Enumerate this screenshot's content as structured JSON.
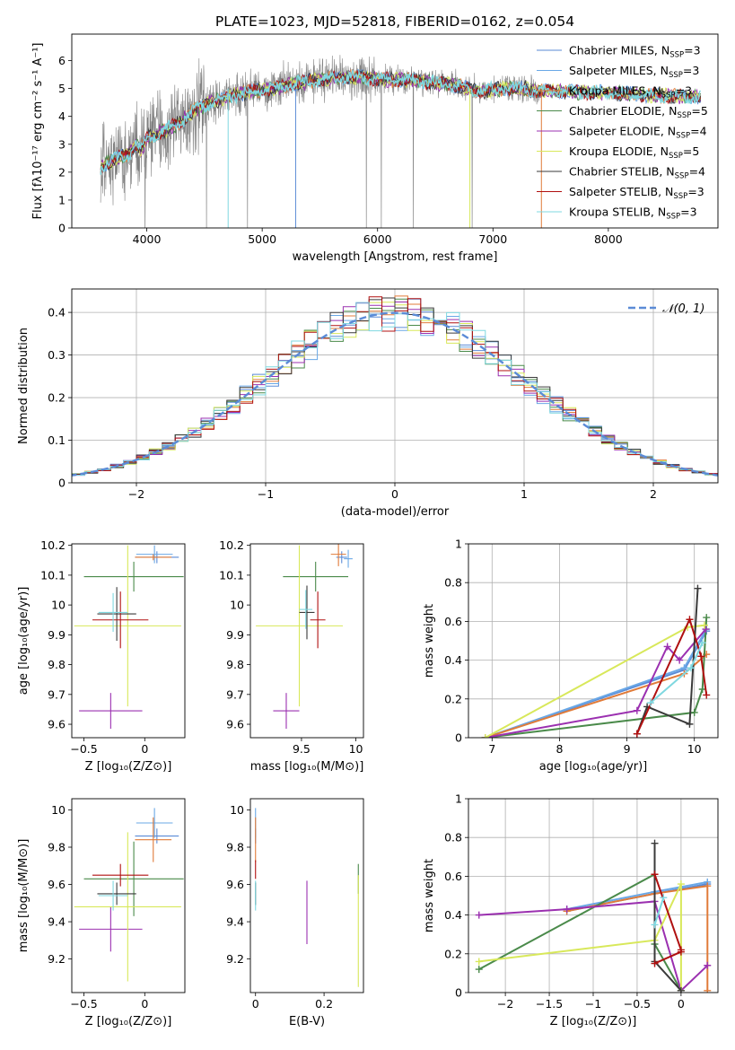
{
  "colors": {
    "observed": "#808080",
    "gaussian": "#5b8bd6",
    "grid": "#b0b0b0",
    "series": [
      "#5b8bd6",
      "#6aa8e6",
      "#e07b39",
      "#4a8a4a",
      "#9b30b0",
      "#d8e85a",
      "#3a3a3a",
      "#b01010",
      "#7fd8e0"
    ]
  },
  "chart_data": [
    {
      "id": "spectrum",
      "type": "line",
      "title": "PLATE=1023, MJD=52818, FIBERID=0162, z=0.054",
      "xlabel": "wavelength [Angstrom, rest frame]",
      "ylabel": "Flux [fλ10⁻¹⁷ erg cm⁻² s⁻¹ A⁻¹]",
      "xlim": [
        3350,
        8950
      ],
      "ylim": [
        0,
        6.95
      ],
      "xticks": [
        4000,
        5000,
        6000,
        7000,
        8000
      ],
      "yticks": [
        0,
        1,
        2,
        3,
        4,
        5,
        6
      ],
      "grid": false,
      "legend_position": "upper-right",
      "observed_range": [
        3600,
        7400
      ],
      "model_anchors": {
        "x": [
          3600,
          3700,
          3800,
          3850,
          3900,
          3950,
          4000,
          4100,
          4200,
          4300,
          4400,
          4500,
          4700,
          4900,
          5100,
          5300,
          5500,
          5700,
          5900,
          6100,
          6300,
          6500,
          6700,
          6900,
          7100,
          7250,
          7400,
          7600,
          7800,
          8000,
          8200,
          8400,
          8800
        ],
        "y": [
          2.2,
          2.4,
          2.6,
          2.7,
          3.0,
          2.8,
          3.2,
          3.4,
          3.6,
          3.8,
          4.2,
          4.4,
          4.7,
          4.9,
          5.0,
          5.2,
          5.3,
          5.4,
          5.4,
          5.3,
          5.3,
          5.2,
          5.1,
          4.9,
          5.0,
          5.0,
          4.9,
          4.9,
          4.85,
          4.85,
          4.8,
          4.75,
          4.7
        ]
      },
      "series": [
        {
          "name": "Chabrier MILES, N_SSP=3",
          "label_main": "Chabrier MILES, N",
          "label_sub": "SSP",
          "label_tail": "=3"
        },
        {
          "name": "Salpeter MILES, N_SSP=3",
          "label_main": "Salpeter MILES, N",
          "label_sub": "SSP",
          "label_tail": "=3"
        },
        {
          "name": "Kroupa MILES, N_SSP=3",
          "label_main": "Kroupa MILES, N",
          "label_sub": "SSP",
          "label_tail": "=3"
        },
        {
          "name": "Chabrier ELODIE, N_SSP=5",
          "label_main": "Chabrier ELODIE, N",
          "label_sub": "SSP",
          "label_tail": "=5"
        },
        {
          "name": "Salpeter ELODIE, N_SSP=4",
          "label_main": "Salpeter ELODIE, N",
          "label_sub": "SSP",
          "label_tail": "=4"
        },
        {
          "name": "Kroupa ELODIE, N_SSP=5",
          "label_main": "Kroupa ELODIE, N",
          "label_sub": "SSP",
          "label_tail": "=5"
        },
        {
          "name": "Chabrier STELIB, N_SSP=4",
          "label_main": "Chabrier STELIB, N",
          "label_sub": "SSP",
          "label_tail": "=4"
        },
        {
          "name": "Salpeter STELIB, N_SSP=3",
          "label_main": "Salpeter STELIB, N",
          "label_sub": "SSP",
          "label_tail": "=3"
        },
        {
          "name": "Kroupa STELIB, N_SSP=3",
          "label_main": "Kroupa STELIB, N",
          "label_sub": "SSP",
          "label_tail": "=3"
        }
      ]
    },
    {
      "id": "residuals",
      "type": "histogram",
      "xlabel": "(data-model)/error",
      "ylabel": "Normed distribution",
      "xlim": [
        -2.5,
        2.5
      ],
      "ylim": [
        0,
        0.455
      ],
      "xticks": [
        -2,
        -1,
        0,
        1,
        2
      ],
      "yticks": [
        0.0,
        0.1,
        0.2,
        0.3,
        0.4
      ],
      "grid": true,
      "legend_position": "upper-right",
      "legend": "𝒩(0, 1)",
      "bin_width": 0.1,
      "gaussian": {
        "mean": 0,
        "sigma": 1
      }
    },
    {
      "id": "age-vs-Z",
      "type": "errorbar",
      "xlabel": "Z [log₁₀(Z/Z⊙)]",
      "ylabel": "age  [log₁₀(age/yr)]",
      "xlim": [
        -0.6,
        0.33
      ],
      "ylim": [
        9.555,
        10.205
      ],
      "xticks": [
        -0.5,
        0.0
      ],
      "yticks": [
        9.6,
        9.7,
        9.8,
        9.9,
        10.0,
        10.1,
        10.2
      ],
      "grid": false,
      "points": [
        {
          "x": 0.1,
          "y": 10.16,
          "xerr": 0.18,
          "yerr": 0.02
        },
        {
          "x": 0.08,
          "y": 10.17,
          "xerr": 0.15,
          "yerr": 0.03
        },
        {
          "x": 0.07,
          "y": 10.16,
          "xerr": 0.15,
          "yerr": 0.01
        },
        {
          "x": -0.09,
          "y": 10.095,
          "xerr": 0.41,
          "yerr": 0.05
        },
        {
          "x": -0.28,
          "y": 9.645,
          "xerr": 0.26,
          "yerr": 0.06
        },
        {
          "x": -0.14,
          "y": 9.93,
          "xerr": 0.44,
          "yerr": 0.27
        },
        {
          "x": -0.23,
          "y": 9.97,
          "xerr": 0.16,
          "yerr": 0.09
        },
        {
          "x": -0.2,
          "y": 9.95,
          "xerr": 0.23,
          "yerr": 0.095
        },
        {
          "x": -0.26,
          "y": 9.975,
          "xerr": 0.12,
          "yerr": 0.065
        }
      ]
    },
    {
      "id": "age-vs-mass",
      "type": "errorbar",
      "xlabel": "mass [log₁₀(M/M⊙)]",
      "ylabel": "",
      "xlim": [
        9.03,
        10.07
      ],
      "ylim": [
        9.555,
        10.205
      ],
      "xticks": [
        9.5,
        10.0
      ],
      "yticks": [
        9.6,
        9.7,
        9.8,
        9.9,
        10.0,
        10.1,
        10.2
      ],
      "grid": false,
      "points": [
        {
          "x": 9.87,
          "y": 10.16,
          "xerr": 0.05,
          "yerr": 0.02
        },
        {
          "x": 9.93,
          "y": 10.155,
          "xerr": 0.04,
          "yerr": 0.03
        },
        {
          "x": 9.84,
          "y": 10.17,
          "xerr": 0.07,
          "yerr": 0.04
        },
        {
          "x": 9.63,
          "y": 10.095,
          "xerr": 0.3,
          "yerr": 0.05
        },
        {
          "x": 9.36,
          "y": 9.645,
          "xerr": 0.12,
          "yerr": 0.06
        },
        {
          "x": 9.48,
          "y": 9.93,
          "xerr": 0.4,
          "yerr": 0.27
        },
        {
          "x": 9.55,
          "y": 9.975,
          "xerr": 0.07,
          "yerr": 0.09
        },
        {
          "x": 9.65,
          "y": 9.95,
          "xerr": 0.07,
          "yerr": 0.095
        },
        {
          "x": 9.54,
          "y": 9.985,
          "xerr": 0.06,
          "yerr": 0.065
        }
      ]
    },
    {
      "id": "weight-vs-age",
      "type": "line",
      "xlabel": "age  [log₁₀(age/yr)]",
      "ylabel": "mass weight",
      "xlim": [
        6.65,
        10.35
      ],
      "ylim": [
        0.0,
        1.0
      ],
      "xticks": [
        7,
        8,
        9,
        10
      ],
      "yticks": [
        0.0,
        0.2,
        0.4,
        0.6,
        0.8,
        1.0
      ],
      "grid": true,
      "series": [
        {
          "x": [
            6.9,
            9.85,
            10.18
          ],
          "y": [
            0.0,
            0.35,
            0.55
          ]
        },
        {
          "x": [
            6.9,
            9.85,
            10.18
          ],
          "y": [
            0.0,
            0.36,
            0.56
          ]
        },
        {
          "x": [
            6.9,
            9.85,
            10.18
          ],
          "y": [
            0.0,
            0.33,
            0.43
          ]
        },
        {
          "x": [
            6.9,
            10.0,
            10.12,
            10.18
          ],
          "y": [
            0.0,
            0.13,
            0.25,
            0.62
          ]
        },
        {
          "x": [
            6.9,
            9.15,
            9.6,
            9.78,
            10.17
          ],
          "y": [
            0.0,
            0.14,
            0.47,
            0.4,
            0.56
          ]
        },
        {
          "x": [
            6.9,
            9.9,
            10.15
          ],
          "y": [
            0.0,
            0.57,
            0.58
          ]
        },
        {
          "x": [
            9.15,
            9.3,
            9.93,
            10.05
          ],
          "y": [
            0.02,
            0.16,
            0.07,
            0.77
          ]
        },
        {
          "x": [
            9.15,
            9.93,
            10.1,
            10.18
          ],
          "y": [
            0.02,
            0.61,
            0.42,
            0.22
          ]
        },
        {
          "x": [
            9.35,
            9.95,
            10.12
          ],
          "y": [
            0.18,
            0.36,
            0.49
          ]
        }
      ]
    },
    {
      "id": "mass-vs-Z",
      "type": "errorbar",
      "xlabel": "Z [log₁₀(Z/Z⊙)]",
      "ylabel": "mass [log₁₀(M/M⊙)]",
      "xlim": [
        -0.6,
        0.33
      ],
      "ylim": [
        9.02,
        10.06
      ],
      "xticks": [
        -0.5,
        0.0
      ],
      "yticks": [
        9.2,
        9.4,
        9.6,
        9.8,
        10.0
      ],
      "grid": false,
      "points": [
        {
          "x": 0.1,
          "y": 9.86,
          "xerr": 0.18,
          "yerr": 0.04
        },
        {
          "x": 0.08,
          "y": 9.93,
          "xerr": 0.15,
          "yerr": 0.08
        },
        {
          "x": 0.07,
          "y": 9.84,
          "xerr": 0.15,
          "yerr": 0.12
        },
        {
          "x": -0.09,
          "y": 9.63,
          "xerr": 0.41,
          "yerr": 0.2
        },
        {
          "x": -0.28,
          "y": 9.36,
          "xerr": 0.26,
          "yerr": 0.12
        },
        {
          "x": -0.14,
          "y": 9.48,
          "xerr": 0.44,
          "yerr": 0.4
        },
        {
          "x": -0.23,
          "y": 9.55,
          "xerr": 0.16,
          "yerr": 0.06
        },
        {
          "x": -0.2,
          "y": 9.65,
          "xerr": 0.23,
          "yerr": 0.06
        },
        {
          "x": -0.26,
          "y": 9.54,
          "xerr": 0.12,
          "yerr": 0.08
        }
      ]
    },
    {
      "id": "mass-vs-EBV",
      "type": "errorbar",
      "xlabel": "E(B-V)",
      "ylabel": "",
      "xlim": [
        -0.015,
        0.315
      ],
      "ylim": [
        9.02,
        10.06
      ],
      "xticks": [
        0.0,
        0.2
      ],
      "yticks": [
        9.2,
        9.4,
        9.6,
        9.8,
        10.0
      ],
      "grid": false,
      "points": [
        {
          "x": 0.0,
          "y": 9.86,
          "xerr": 0,
          "yerr": 0.04
        },
        {
          "x": 0.0,
          "y": 9.93,
          "xerr": 0,
          "yerr": 0.08
        },
        {
          "x": 0.0,
          "y": 9.84,
          "xerr": 0,
          "yerr": 0.12
        },
        {
          "x": 0.3,
          "y": 9.63,
          "xerr": 0,
          "yerr": 0.08
        },
        {
          "x": 0.15,
          "y": 9.45,
          "xerr": 0,
          "yerr": 0.17
        },
        {
          "x": 0.3,
          "y": 9.35,
          "xerr": 0,
          "yerr": 0.3
        },
        {
          "x": 0.0,
          "y": 9.55,
          "xerr": 0,
          "yerr": 0.06
        },
        {
          "x": 0.0,
          "y": 9.68,
          "xerr": 0,
          "yerr": 0.05
        },
        {
          "x": 0.0,
          "y": 9.54,
          "xerr": 0,
          "yerr": 0.08
        }
      ]
    },
    {
      "id": "weight-vs-Z",
      "type": "line",
      "xlabel": "Z [log₁₀(Z/Z⊙)]",
      "ylabel": "mass weight",
      "xlim": [
        -2.42,
        0.42
      ],
      "ylim": [
        0.0,
        1.0
      ],
      "xticks": [
        -2.0,
        -1.5,
        -1.0,
        -0.5,
        0.0
      ],
      "yticks": [
        0.0,
        0.2,
        0.4,
        0.6,
        0.8,
        1.0
      ],
      "grid": true,
      "series": [
        {
          "x": [
            -1.3,
            -0.3,
            0.3
          ],
          "y": [
            0.42,
            0.51,
            0.56
          ]
        },
        {
          "x": [
            -1.3,
            -0.3,
            0.3
          ],
          "y": [
            0.43,
            0.52,
            0.57
          ]
        },
        {
          "x": [
            -1.3,
            -0.3,
            0.3,
            0.3
          ],
          "y": [
            0.42,
            0.51,
            0.55,
            0.01
          ]
        },
        {
          "x": [
            -2.3,
            -0.3,
            -0.3,
            0.0
          ],
          "y": [
            0.12,
            0.61,
            0.25,
            0.01
          ]
        },
        {
          "x": [
            -2.3,
            -1.3,
            -0.3,
            0.0,
            0.3
          ],
          "y": [
            0.4,
            0.43,
            0.47,
            0.01,
            0.14
          ]
        },
        {
          "x": [
            -2.3,
            -0.3,
            0.0,
            0.0
          ],
          "y": [
            0.16,
            0.27,
            0.56,
            0.01
          ]
        },
        {
          "x": [
            -0.3,
            -0.3,
            0.0
          ],
          "y": [
            0.77,
            0.16,
            0.01
          ]
        },
        {
          "x": [
            -0.3,
            0.0,
            0.0,
            -0.3
          ],
          "y": [
            0.61,
            0.22,
            0.21,
            0.15
          ]
        },
        {
          "x": [
            -0.3,
            -0.2
          ],
          "y": [
            0.35,
            0.49
          ]
        }
      ]
    }
  ]
}
